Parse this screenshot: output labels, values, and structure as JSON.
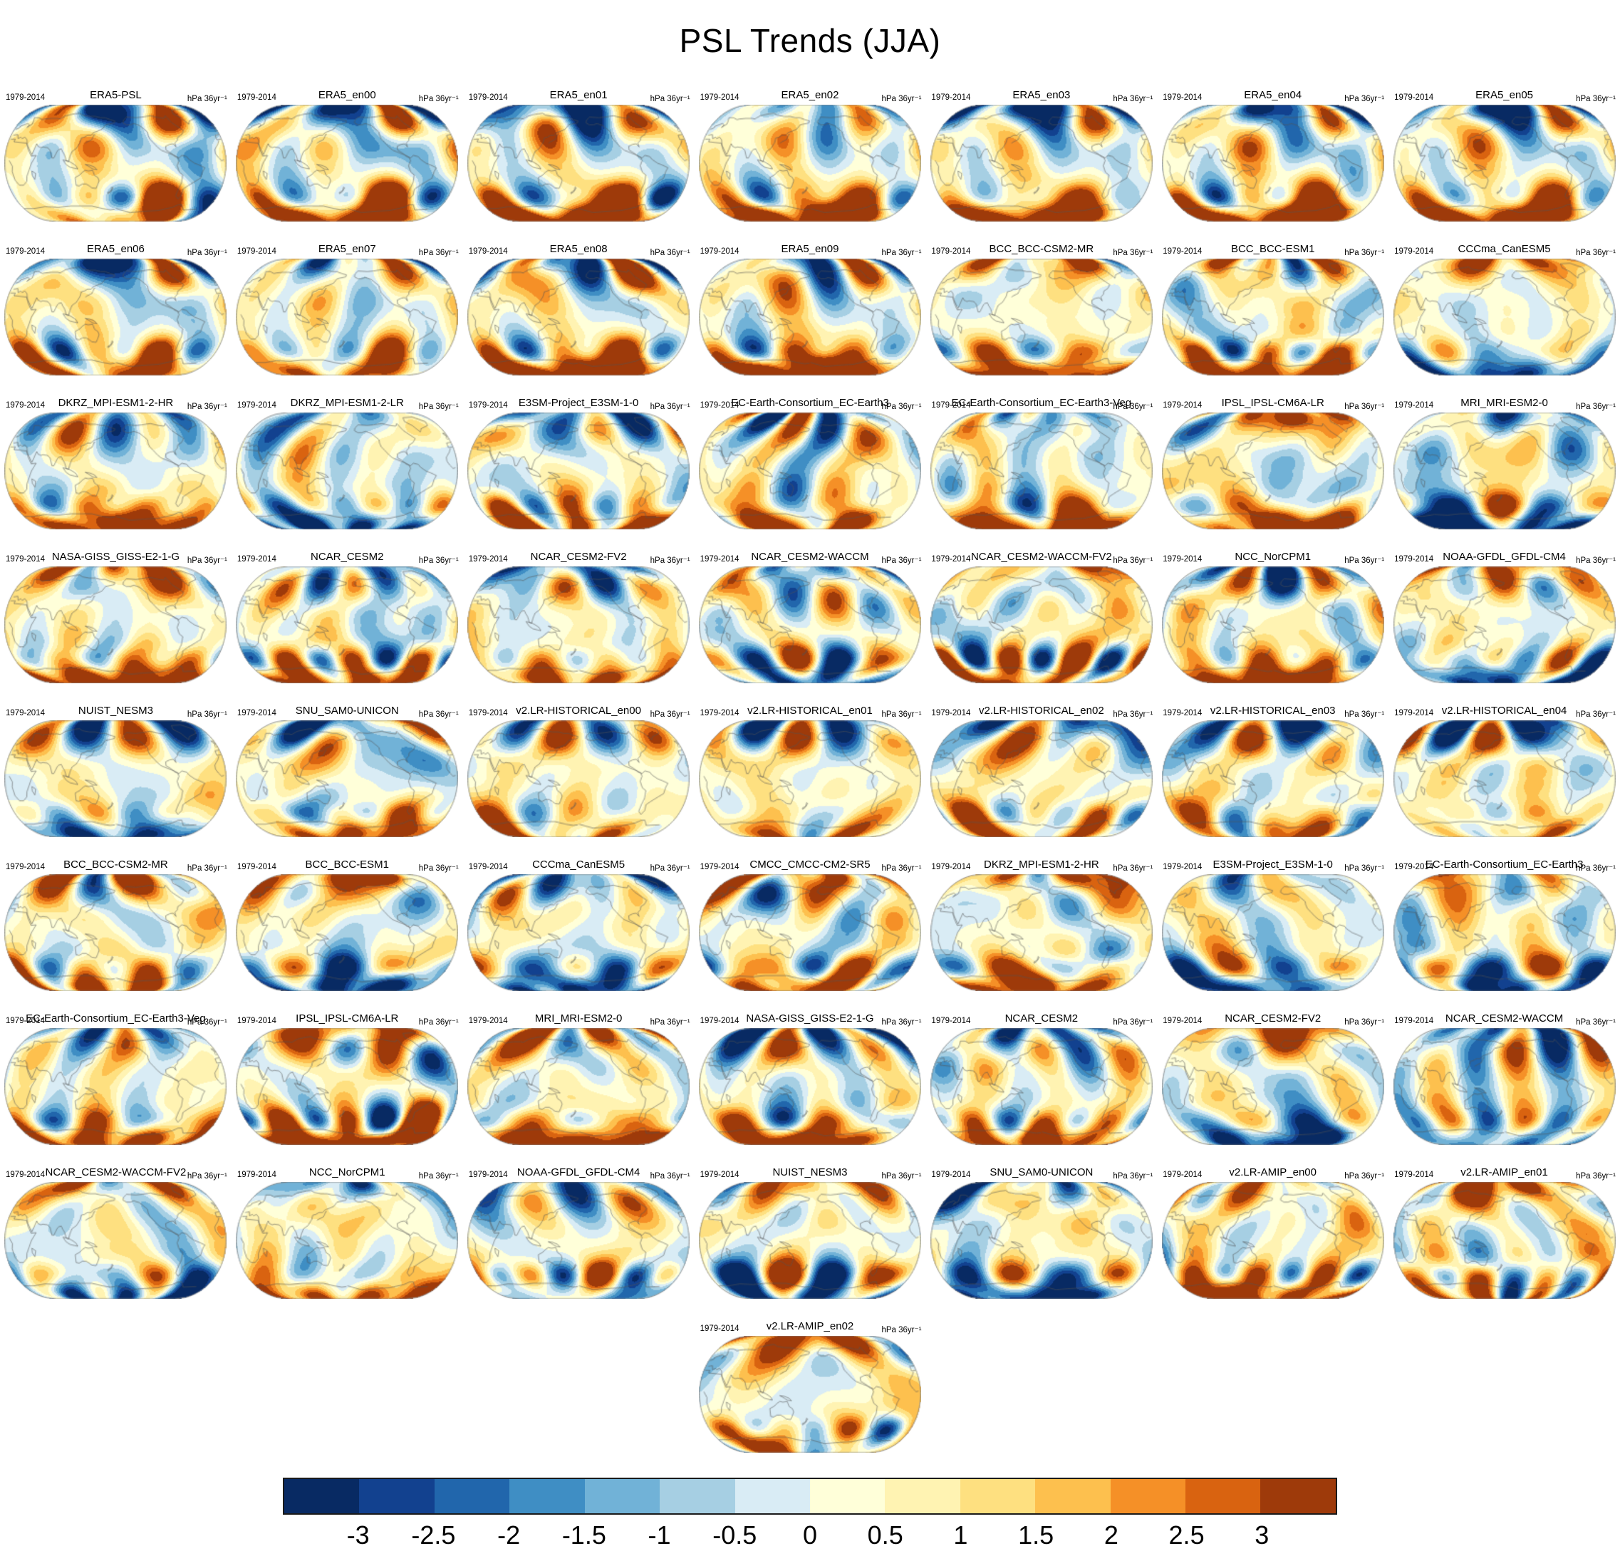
{
  "title": "PSL Trends (JJA)",
  "period_label": "1979-2014",
  "units_label": "hPa 36yr⁻¹",
  "chart_data": {
    "type": "heatmap",
    "subtype": "global-map-small-multiples",
    "title": "PSL Trends (JJA)",
    "projection": "Robinson",
    "variable": "Sea level pressure trend",
    "season": "JJA",
    "period": "1979-2014",
    "units": "hPa 36yr⁻¹",
    "grid": {
      "columns": 7,
      "rows": 9,
      "total_panels": 57,
      "last_panel_centered": true
    },
    "panel_titles": [
      "ERA5-PSL",
      "ERA5_en00",
      "ERA5_en01",
      "ERA5_en02",
      "ERA5_en03",
      "ERA5_en04",
      "ERA5_en05",
      "ERA5_en06",
      "ERA5_en07",
      "ERA5_en08",
      "ERA5_en09",
      "BCC_BCC-CSM2-MR",
      "BCC_BCC-ESM1",
      "CCCma_CanESM5",
      "DKRZ_MPI-ESM1-2-HR",
      "DKRZ_MPI-ESM1-2-LR",
      "E3SM-Project_E3SM-1-0",
      "EC-Earth-Consortium_EC-Earth3",
      "EC-Earth-Consortium_EC-Earth3-Veg",
      "IPSL_IPSL-CM6A-LR",
      "MRI_MRI-ESM2-0",
      "NASA-GISS_GISS-E2-1-G",
      "NCAR_CESM2",
      "NCAR_CESM2-FV2",
      "NCAR_CESM2-WACCM",
      "NCAR_CESM2-WACCM-FV2",
      "NCC_NorCPM1",
      "NOAA-GFDL_GFDL-CM4",
      "NUIST_NESM3",
      "SNU_SAM0-UNICON",
      "v2.LR-HISTORICAL_en00",
      "v2.LR-HISTORICAL_en01",
      "v2.LR-HISTORICAL_en02",
      "v2.LR-HISTORICAL_en03",
      "v2.LR-HISTORICAL_en04",
      "BCC_BCC-CSM2-MR",
      "BCC_BCC-ESM1",
      "CCCma_CanESM5",
      "CMCC_CMCC-CM2-SR5",
      "DKRZ_MPI-ESM1-2-HR",
      "E3SM-Project_E3SM-1-0",
      "EC-Earth-Consortium_EC-Earth3",
      "EC-Earth-Consortium_EC-Earth3-Veg",
      "IPSL_IPSL-CM6A-LR",
      "MRI_MRI-ESM2-0",
      "NASA-GISS_GISS-E2-1-G",
      "NCAR_CESM2",
      "NCAR_CESM2-FV2",
      "NCAR_CESM2-WACCM",
      "NCAR_CESM2-WACCM-FV2",
      "NCC_NorCPM1",
      "NOAA-GFDL_GFDL-CM4",
      "NUIST_NESM3",
      "SNU_SAM0-UNICON",
      "v2.LR-AMIP_en00",
      "v2.LR-AMIP_en01",
      "v2.LR-AMIP_en02"
    ],
    "colorbar": {
      "orientation": "horizontal",
      "tick_values": [
        -3,
        -2.5,
        -2,
        -1.5,
        -1,
        -0.5,
        0,
        0.5,
        1,
        1.5,
        2,
        2.5,
        3
      ],
      "tick_labels": [
        "-3",
        "-2.5",
        "-2",
        "-1.5",
        "-1",
        "-0.5",
        "0",
        "0.5",
        "1",
        "1.5",
        "2",
        "2.5",
        "3"
      ],
      "colors": [
        "#082a63",
        "#12418f",
        "#2166ac",
        "#3f8ec4",
        "#71b2d7",
        "#a6cfe3",
        "#d9ecf5",
        "#ffffd9",
        "#fff3b2",
        "#fee080",
        "#fdc04e",
        "#f59027",
        "#d96310",
        "#9e3a0a"
      ]
    }
  }
}
